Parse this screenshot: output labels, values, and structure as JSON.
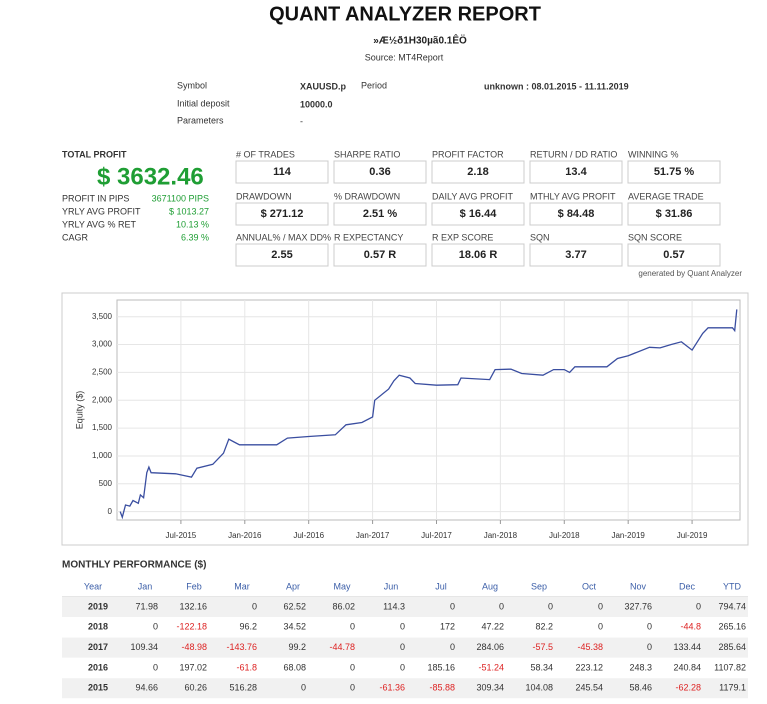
{
  "header": {
    "title": "QUANT ANALYZER REPORT",
    "subtitle": "»Æ½ð1H30µã0.1ÊÖ",
    "source": "Source: MT4Report"
  },
  "info": {
    "symbol_label": "Symbol",
    "symbol": "XAUUSD.p",
    "period_label": "Period",
    "period": "unknown : 08.01.2015 - 11.11.2019",
    "deposit_label": "Initial deposit",
    "deposit": "10000.0",
    "parameters_label": "Parameters",
    "parameters": "-"
  },
  "total_profit": {
    "label": "TOTAL PROFIT",
    "value": "$ 3632.46",
    "rows": [
      [
        "PROFIT IN PIPS",
        "3671100 PIPS"
      ],
      [
        "YRLY AVG PROFIT",
        "$ 1013.27"
      ],
      [
        "YRLY AVG % RET",
        "10.13 %"
      ],
      [
        "CAGR",
        "6.39 %"
      ]
    ]
  },
  "stats": [
    [
      [
        "# OF TRADES",
        "114"
      ],
      [
        "SHARPE RATIO",
        "0.36"
      ],
      [
        "PROFIT FACTOR",
        "2.18"
      ],
      [
        "RETURN / DD RATIO",
        "13.4"
      ],
      [
        "WINNING %",
        "51.75 %"
      ]
    ],
    [
      [
        "DRAWDOWN",
        "$ 271.12"
      ],
      [
        "% DRAWDOWN",
        "2.51 %"
      ],
      [
        "DAILY AVG PROFIT",
        "$ 16.44"
      ],
      [
        "MTHLY AVG PROFIT",
        "$ 84.48"
      ],
      [
        "AVERAGE TRADE",
        "$ 31.86"
      ]
    ],
    [
      [
        "ANNUAL% / MAX DD%",
        "2.55"
      ],
      [
        "R EXPECTANCY",
        "0.57 R"
      ],
      [
        "R EXP SCORE",
        "18.06 R"
      ],
      [
        "SQN",
        "3.77"
      ],
      [
        "SQN SCORE",
        "0.57"
      ]
    ]
  ],
  "generated": "generated by Quant Analyzer",
  "equity_chart": {
    "type": "line",
    "y_label": "Equity ($)",
    "color": "#3a4ea0",
    "x": [
      0.3,
      0.5,
      0.8,
      1.2,
      1.5,
      2,
      2.2,
      2.5,
      2.8,
      3,
      3.2,
      5.5,
      7,
      7.5,
      9,
      10,
      10.5,
      11,
      11.5,
      15,
      16,
      18,
      20.5,
      21.5,
      23,
      24,
      24.2,
      25.5,
      26,
      26.5,
      27.5,
      28,
      30,
      32,
      32.3,
      35,
      35.5,
      37,
      38,
      40,
      41,
      42,
      42.5,
      43,
      46,
      47,
      48,
      50,
      51,
      52,
      53,
      54,
      55,
      55.5,
      57.8,
      58,
      58.2
    ],
    "values": [
      0,
      -100,
      120,
      100,
      200,
      150,
      300,
      250,
      700,
      800,
      700,
      680,
      620,
      780,
      850,
      1050,
      1300,
      1250,
      1200,
      1200,
      1320,
      1350,
      1380,
      1560,
      1600,
      1700,
      2000,
      2200,
      2350,
      2450,
      2400,
      2300,
      2270,
      2280,
      2400,
      2370,
      2550,
      2560,
      2480,
      2450,
      2550,
      2550,
      2500,
      2600,
      2600,
      2750,
      2800,
      2950,
      2940,
      3000,
      3050,
      2900,
      3200,
      3300,
      3300,
      3250,
      3632
    ],
    "xlim": [
      0,
      58.5
    ],
    "ylim": [
      -150,
      3800
    ],
    "yticks": [
      0,
      500,
      {
        "value": 1000,
        "label": "1,000"
      },
      {
        "value": 1500,
        "label": "1,500"
      },
      {
        "value": 2000,
        "label": "2,000"
      },
      {
        "value": 2500,
        "label": "2,500"
      },
      {
        "value": 3000,
        "label": "3,000"
      },
      {
        "value": 3500,
        "label": "3,500"
      }
    ],
    "xticks": [
      {
        "value": 6,
        "label": "Jul-2015"
      },
      {
        "value": 12,
        "label": "Jan-2016"
      },
      {
        "value": 18,
        "label": "Jul-2016"
      },
      {
        "value": 24,
        "label": "Jan-2017"
      },
      {
        "value": 30,
        "label": "Jul-2017"
      },
      {
        "value": 36,
        "label": "Jan-2018"
      },
      {
        "value": 42,
        "label": "Jul-2018"
      },
      {
        "value": 48,
        "label": "Jan-2019"
      },
      {
        "value": 54,
        "label": "Jul-2019"
      }
    ],
    "grid": true
  },
  "monthly": {
    "title": "MONTHLY PERFORMANCE ($)",
    "header": [
      "Year",
      "Jan",
      "Feb",
      "Mar",
      "Apr",
      "May",
      "Jun",
      "Jul",
      "Aug",
      "Sep",
      "Oct",
      "Nov",
      "Dec",
      "YTD"
    ],
    "rows": [
      [
        "2019",
        "71.98",
        "132.16",
        "0",
        "62.52",
        "86.02",
        "114.3",
        "0",
        "0",
        "0",
        "0",
        "327.76",
        "0",
        "794.74"
      ],
      [
        "2018",
        "0",
        "-122.18",
        "96.2",
        "34.52",
        "0",
        "0",
        "172",
        "47.22",
        "82.2",
        "0",
        "0",
        "-44.8",
        "265.16"
      ],
      [
        "2017",
        "109.34",
        "-48.98",
        "-143.76",
        "99.2",
        "-44.78",
        "0",
        "0",
        "284.06",
        "-57.5",
        "-45.38",
        "0",
        "133.44",
        "285.64"
      ],
      [
        "2016",
        "0",
        "197.02",
        "-61.8",
        "68.08",
        "0",
        "0",
        "185.16",
        "-51.24",
        "58.34",
        "223.12",
        "248.3",
        "240.84",
        "1107.82"
      ],
      [
        "2015",
        "94.66",
        "60.26",
        "516.28",
        "0",
        "0",
        "-61.36",
        "-85.88",
        "309.34",
        "104.08",
        "245.54",
        "58.46",
        "-62.28",
        "1179.1"
      ]
    ]
  }
}
